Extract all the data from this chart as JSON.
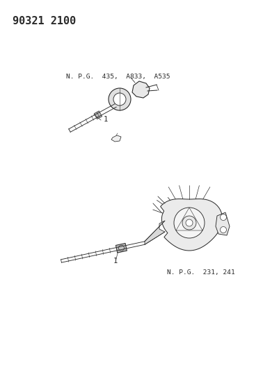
{
  "title": "90321 2100",
  "bg_color": "#ffffff",
  "line_color": "#2a2a2a",
  "text_color": "#2a2a2a",
  "title_fontsize": 11,
  "label_fontsize": 6.8,
  "partnum_fontsize": 7.5,
  "diagram1_label": "N. P.G.  435,  A833,  A535",
  "diagram2_label": "N. P.G.  231, 241"
}
